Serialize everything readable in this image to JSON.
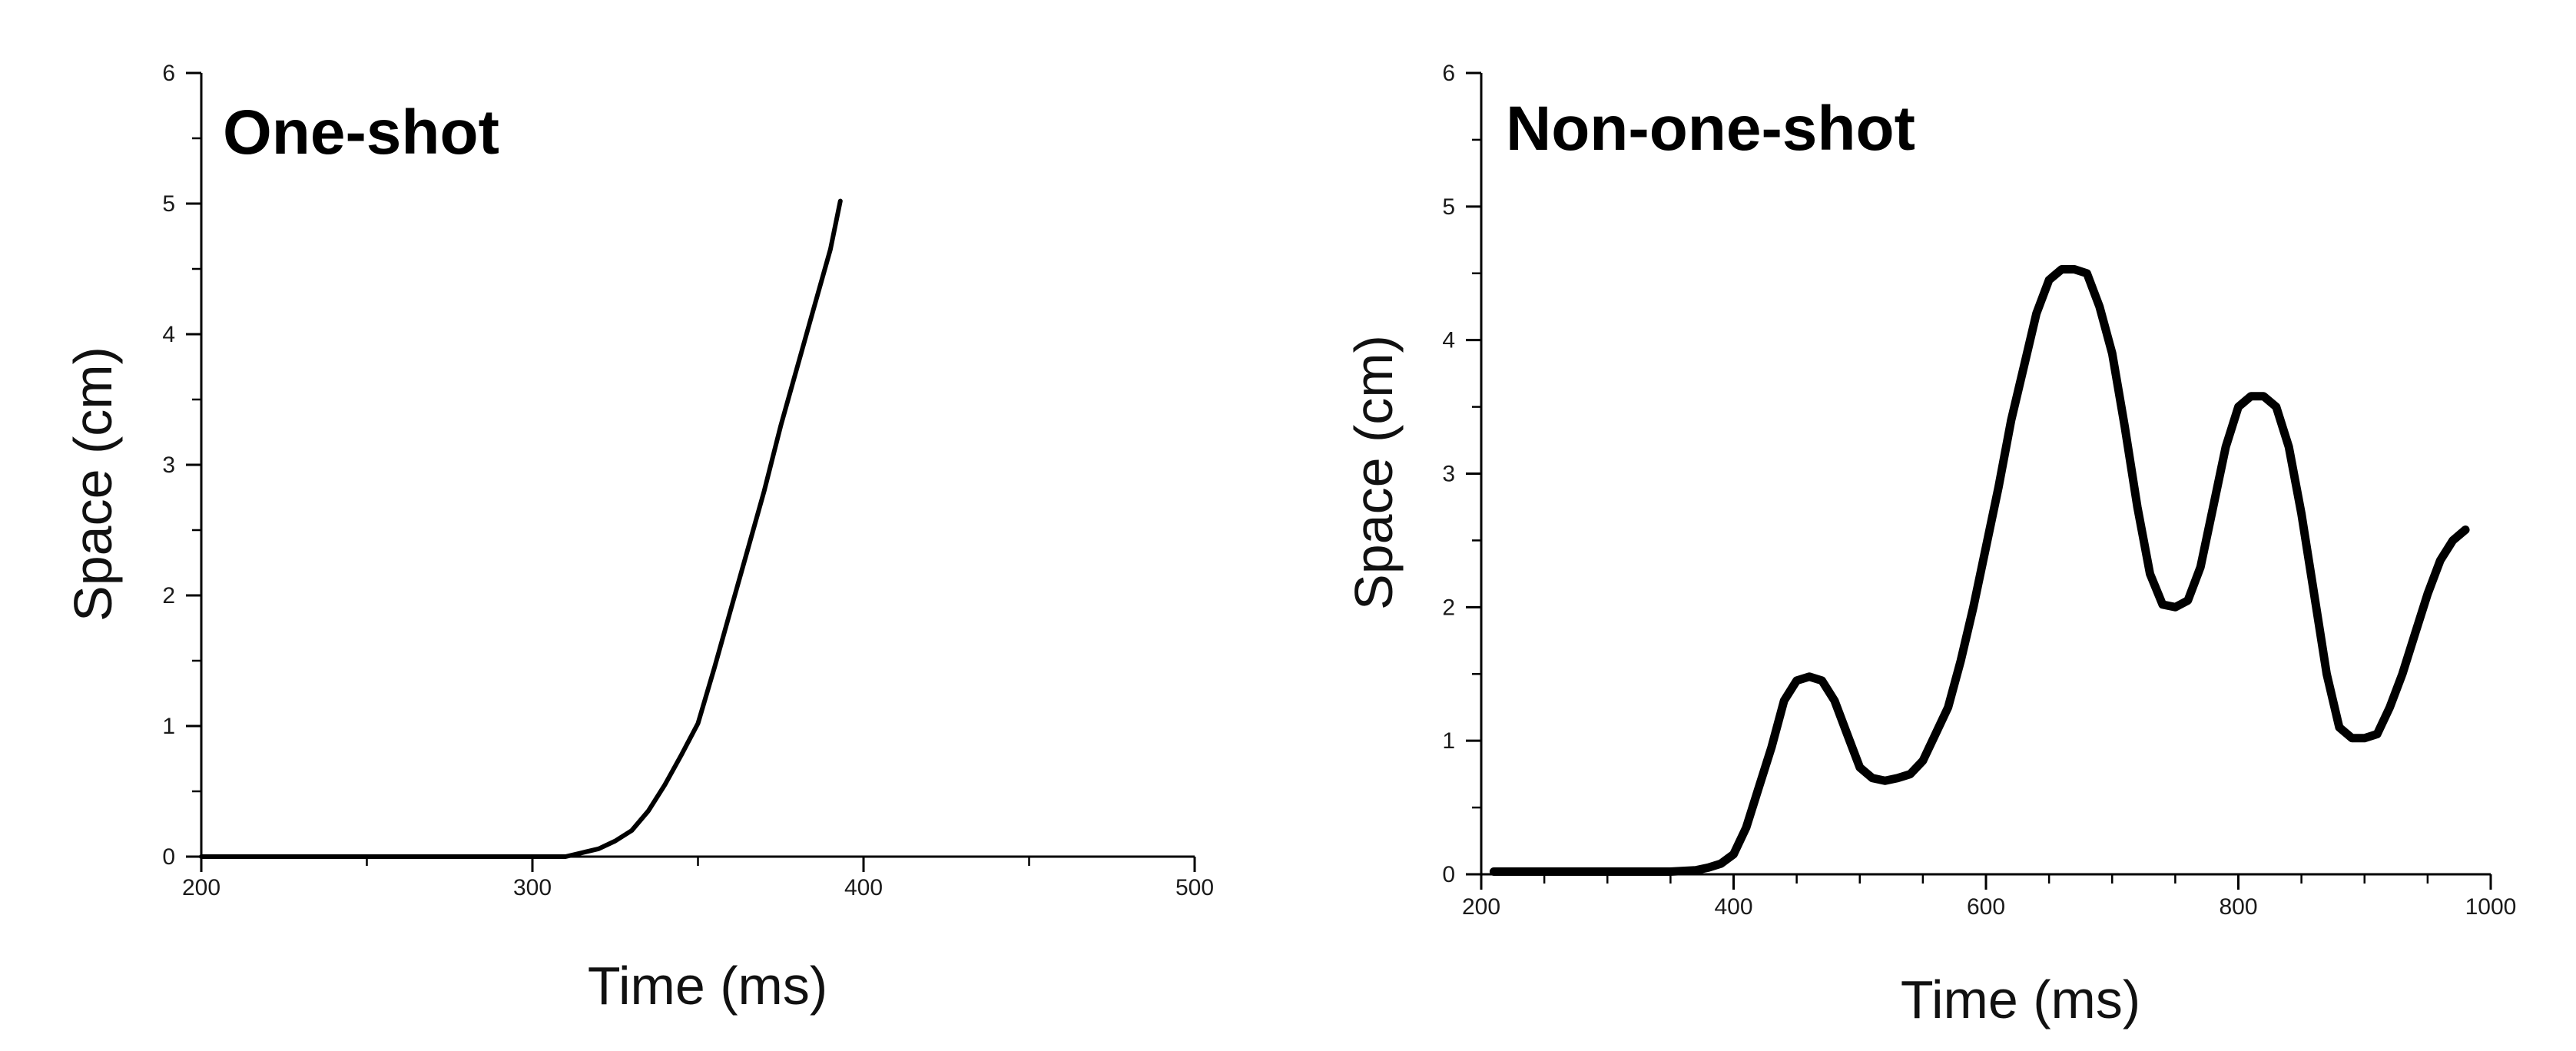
{
  "chart_data": [
    {
      "type": "line",
      "title": "One-shot",
      "xlabel": "Time (ms)",
      "ylabel": "Space (cm)",
      "xlim": [
        200,
        500
      ],
      "ylim": [
        0,
        6
      ],
      "xticks": [
        200,
        300,
        400,
        500
      ],
      "yticks": [
        0,
        1,
        2,
        3,
        4,
        5,
        6
      ],
      "grid": false,
      "series": [
        {
          "x": [
            200,
            250,
            300,
            310,
            315,
            320,
            325,
            330,
            335,
            340,
            345,
            350,
            355,
            360,
            365,
            370,
            375,
            380,
            385,
            390,
            393
          ],
          "y": [
            0.0,
            0.0,
            0.0,
            0.0,
            0.03,
            0.06,
            0.12,
            0.2,
            0.35,
            0.55,
            0.78,
            1.02,
            1.45,
            1.9,
            2.35,
            2.8,
            3.3,
            3.75,
            4.2,
            4.65,
            5.02
          ]
        }
      ]
    },
    {
      "type": "line",
      "title": "Non-one-shot",
      "xlabel": "Time (ms)",
      "ylabel": "Space (cm)",
      "xlim": [
        200,
        1000
      ],
      "ylim": [
        0,
        6
      ],
      "xticks": [
        200,
        400,
        600,
        800,
        1000
      ],
      "yticks": [
        0,
        1,
        2,
        3,
        4,
        5,
        6
      ],
      "grid": false,
      "series": [
        {
          "x": [
            210,
            250,
            300,
            350,
            370,
            380,
            390,
            400,
            410,
            420,
            430,
            440,
            450,
            460,
            470,
            480,
            490,
            500,
            510,
            520,
            530,
            540,
            550,
            560,
            570,
            580,
            590,
            600,
            610,
            620,
            630,
            640,
            650,
            660,
            670,
            680,
            690,
            700,
            710,
            720,
            730,
            740,
            750,
            760,
            770,
            780,
            790,
            800,
            810,
            820,
            830,
            840,
            850,
            860,
            870,
            880,
            890,
            900,
            910,
            920,
            930,
            940,
            950,
            960,
            970,
            980
          ],
          "y": [
            0.02,
            0.02,
            0.02,
            0.02,
            0.03,
            0.05,
            0.08,
            0.15,
            0.35,
            0.65,
            0.95,
            1.3,
            1.45,
            1.48,
            1.45,
            1.3,
            1.05,
            0.8,
            0.72,
            0.7,
            0.72,
            0.75,
            0.85,
            1.05,
            1.25,
            1.6,
            2.0,
            2.45,
            2.9,
            3.4,
            3.8,
            4.2,
            4.45,
            4.53,
            4.53,
            4.5,
            4.25,
            3.9,
            3.35,
            2.75,
            2.25,
            2.02,
            2.0,
            2.05,
            2.3,
            2.75,
            3.2,
            3.5,
            3.58,
            3.58,
            3.5,
            3.2,
            2.7,
            2.1,
            1.5,
            1.1,
            1.02,
            1.02,
            1.05,
            1.25,
            1.5,
            1.8,
            2.1,
            2.35,
            2.5,
            2.58
          ]
        }
      ]
    }
  ]
}
